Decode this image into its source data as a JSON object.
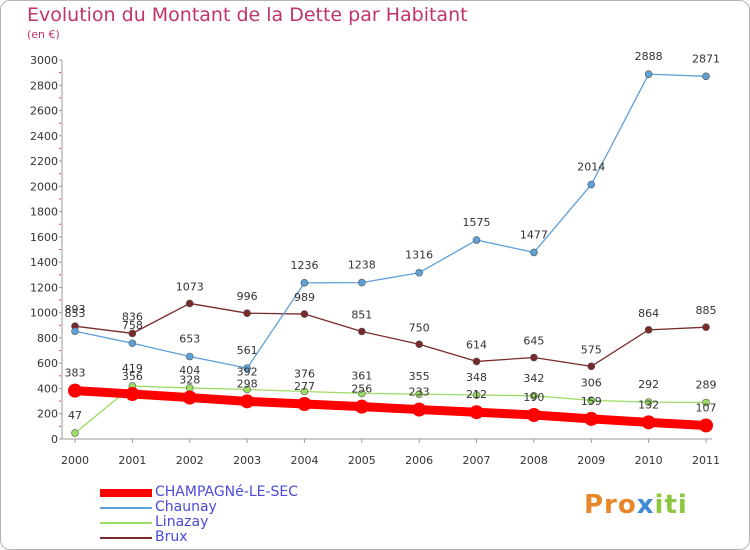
{
  "chart_data": {
    "type": "line",
    "title": "Evolution du Montant de la Dette par Habitant",
    "subtitle": "(en €)",
    "xlabel": "",
    "ylabel": "",
    "x": [
      "2000",
      "2001",
      "2002",
      "2003",
      "2004",
      "2005",
      "2006",
      "2007",
      "2008",
      "2009",
      "2010",
      "2011"
    ],
    "ylim": [
      0,
      3000
    ],
    "yticks": [
      0,
      200,
      400,
      600,
      800,
      1000,
      1200,
      1400,
      1600,
      1800,
      2000,
      2200,
      2400,
      2600,
      2800,
      3000
    ],
    "grid": false,
    "legend_position": "bottom-left",
    "series": [
      {
        "name": "CHAMPAGNé-LE-SEC",
        "color": "#ff0000",
        "values": [
          383,
          356,
          328,
          298,
          277,
          256,
          233,
          212,
          190,
          159,
          132,
          107
        ],
        "labels": [
          "383",
          "356",
          "328",
          "298",
          "277",
          "256",
          "233",
          "212",
          "190",
          "159",
          "132",
          "107"
        ]
      },
      {
        "name": "Chaunay",
        "color": "#5ea0d8",
        "values": [
          853,
          758,
          653,
          561,
          1236,
          1238,
          1316,
          1575,
          1477,
          2014,
          2888,
          2871
        ],
        "labels": [
          "853",
          "758",
          "653",
          "561",
          "1236",
          "1238",
          "1316",
          "1575",
          "1477",
          "2014",
          "2888",
          "2871"
        ]
      },
      {
        "name": "Linazay",
        "color": "#9ddd64",
        "values": [
          47,
          419,
          404,
          392,
          376,
          361,
          355,
          348,
          342,
          306,
          292,
          289
        ],
        "labels": [
          "47",
          "419",
          "404",
          "392",
          "376",
          "361",
          "355",
          "348",
          "342",
          "306",
          "292",
          "289"
        ]
      },
      {
        "name": "Brux",
        "color": "#7a2a2a",
        "values": [
          893,
          836,
          1073,
          996,
          989,
          851,
          750,
          614,
          645,
          575,
          864,
          885
        ],
        "labels": [
          "893",
          "836",
          "1073",
          "996",
          "989",
          "851",
          "750",
          "614",
          "645",
          "575",
          "864",
          "885"
        ]
      }
    ]
  },
  "brand": {
    "p1": "Pro",
    "p2": "x",
    "p3": "iti"
  }
}
